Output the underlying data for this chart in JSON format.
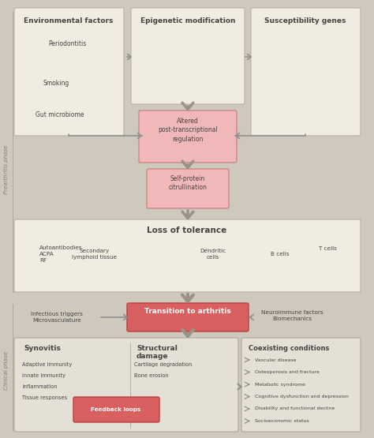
{
  "bg_color": "#cfc8bc",
  "fig_w": 4.74,
  "fig_h": 5.55,
  "dpi": 100,
  "box_fc": "#f0ece2",
  "box_ec": "#b8b0a0",
  "pink_fc": "#f0b8b8",
  "pink_ec": "#c87878",
  "red_fc": "#d96060",
  "red_ec": "#b84040",
  "white_fc": "#f8f5ef",
  "bottom_fc": "#e5e0d5",
  "bottom_ec": "#b0a898",
  "label_color": "#444444",
  "phase_label_color": "#888070",
  "arrow_color": "#909090",
  "arrow_color_dark": "#787068",
  "prearthritis_label": "Prearthritis phase",
  "clinical_label": "Clinical phase",
  "env_title": "Environmental factors",
  "epi_title": "Epigenetic modification",
  "sus_title": "Susceptibility genes",
  "env_items": [
    "Periodontitis",
    "Smoking",
    "Gut microbiome"
  ],
  "altered_text": "Altered\npost-transcriptional\nregulation",
  "self_text": "Self-protein\ncitrullination",
  "tolerance_title": "Loss of tolerance",
  "tolerance_items_left": [
    "Autoantibodies",
    "ACPA",
    "RF"
  ],
  "tolerance_item2": "Secondary\nlymphoid tissue",
  "tolerance_item3": "Dendritic\ncells",
  "tolerance_item4": "B cells",
  "tolerance_item5": "T cells",
  "transition_text": "Transition to arthritis",
  "left_trans": "Infectious triggers\nMicrovasculature",
  "right_trans": "Neuroimmune factors\nBiomechanics",
  "syn_title": "Synovitis",
  "syn_items": [
    "Adaptive immunity",
    "Innate immunity",
    "Inflammation",
    "Tissue responses"
  ],
  "struct_title": "Structural\ndamage",
  "struct_items": [
    "Cartilage degradation",
    "Bone erosion"
  ],
  "feedback_text": "Feedback loops",
  "coex_title": "Coexisting conditions",
  "coex_items": [
    "Vascular disease",
    "Osteoporosis and fracture",
    "Metabolic syndrome",
    "Cognitive dysfunction and depression",
    "Disability and functional decline",
    "Socioeconomic status"
  ]
}
